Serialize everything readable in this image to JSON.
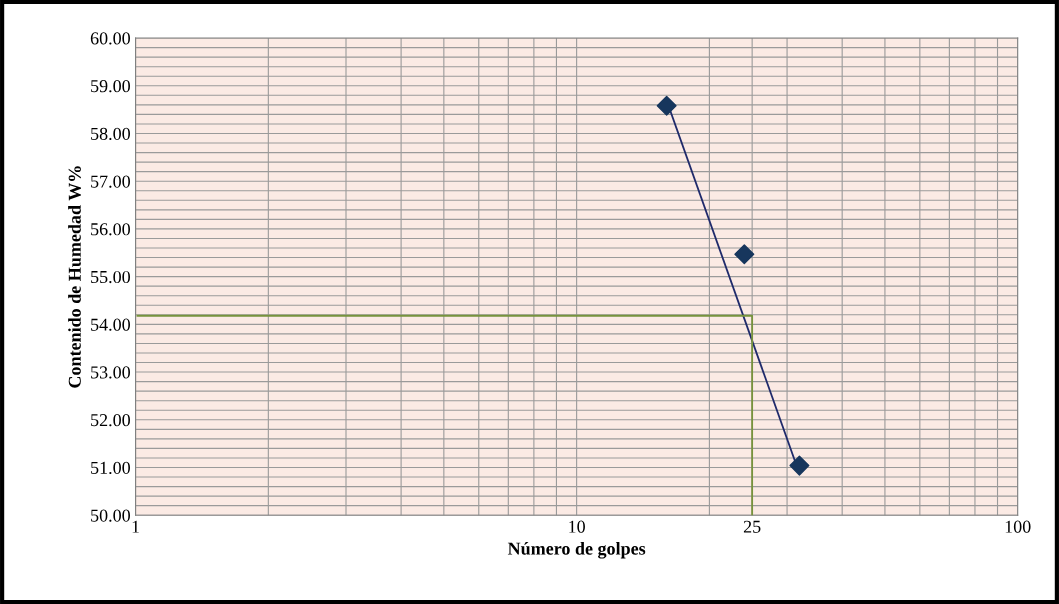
{
  "chart_data": {
    "type": "scatter",
    "xlabel": "Número de golpes",
    "ylabel": "Contenido de Humedad W%",
    "log": "x",
    "xlim": [
      1,
      100
    ],
    "xticks": [
      1,
      10,
      25,
      100
    ],
    "ylim": [
      50,
      60
    ],
    "yticks": [
      {
        "value": 50,
        "label": "50.00"
      },
      {
        "value": 51,
        "label": "51.00"
      },
      {
        "value": 52,
        "label": "52.00"
      },
      {
        "value": 53,
        "label": "53.00"
      },
      {
        "value": 54,
        "label": "54.00"
      },
      {
        "value": 55,
        "label": "55.00"
      },
      {
        "value": 56,
        "label": "56.00"
      },
      {
        "value": 57,
        "label": "57.00"
      },
      {
        "value": 58,
        "label": "58.00"
      },
      {
        "value": 59,
        "label": "59.00"
      },
      {
        "value": 60,
        "label": "60.00"
      }
    ],
    "grid": true,
    "legend": false,
    "series": [
      {
        "x": [
          16,
          24,
          32
        ],
        "values": [
          58.58,
          55.47,
          51.04
        ],
        "color": "#17365d",
        "marker": "diamond"
      },
      {
        "type": "line",
        "x": [
          16.2,
          31.5
        ],
        "values": [
          58.55,
          51.05
        ],
        "color": "#1f2a6b",
        "marker": "none"
      },
      {
        "type": "line",
        "x": [
          1.01,
          25,
          25
        ],
        "values": [
          54.18,
          54.18,
          50
        ],
        "color": "#77933c",
        "marker": "none"
      }
    ]
  }
}
